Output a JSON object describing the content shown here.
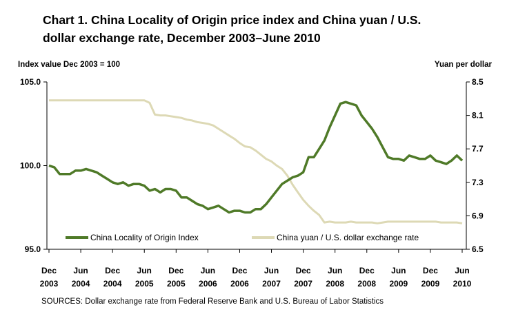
{
  "chart_data": {
    "type": "line",
    "title_line1": "Chart 1.  China Locality of Origin price index and China yuan / U.S.",
    "title_line2": "dollar exchange rate, December 2003–June 2010",
    "ylabel_left": "Index value Dec 2003 = 100",
    "ylabel_right": "Yuan per dollar",
    "source": "SOURCES: Dollar exchange rate from Federal Reserve Bank and U.S. Bureau of Labor Statistics",
    "ylim_left": [
      95.0,
      105.0
    ],
    "ylim_right": [
      6.5,
      8.5
    ],
    "yticks_left": [
      "105.0",
      "100.0",
      "95.0"
    ],
    "yticks_left_values": [
      105,
      100,
      95
    ],
    "yticks_right": [
      "8.5",
      "8.1",
      "7.7",
      "7.3",
      "6.9",
      "6.5"
    ],
    "yticks_right_values": [
      8.5,
      8.1,
      7.7,
      7.3,
      6.9,
      6.5
    ],
    "x_tick_labels": [
      [
        "Dec",
        "2003"
      ],
      [
        "Jun",
        "2004"
      ],
      [
        "Dec",
        "2004"
      ],
      [
        "Jun",
        "2005"
      ],
      [
        "Dec",
        "2005"
      ],
      [
        "Jun",
        "2006"
      ],
      [
        "Dec",
        "2006"
      ],
      [
        "Jun",
        "2007"
      ],
      [
        "Dec",
        "2007"
      ],
      [
        "Jun",
        "2008"
      ],
      [
        "Dec",
        "2008"
      ],
      [
        "Jun",
        "2009"
      ],
      [
        "Dec",
        "2009"
      ],
      [
        "Jun",
        "2010"
      ]
    ],
    "x_range_months": [
      0,
      78
    ],
    "series": [
      {
        "name": "China Locality of Origin Index",
        "axis": "left",
        "color": "#4f7a28",
        "values": [
          100.0,
          99.9,
          99.5,
          99.5,
          99.5,
          99.7,
          99.7,
          99.8,
          99.7,
          99.6,
          99.4,
          99.2,
          99.0,
          98.9,
          99.0,
          98.8,
          98.9,
          98.9,
          98.8,
          98.5,
          98.6,
          98.4,
          98.6,
          98.6,
          98.5,
          98.1,
          98.1,
          97.9,
          97.7,
          97.6,
          97.4,
          97.5,
          97.6,
          97.4,
          97.2,
          97.3,
          97.3,
          97.2,
          97.2,
          97.4,
          97.4,
          97.7,
          98.1,
          98.5,
          98.9,
          99.1,
          99.3,
          99.4,
          99.6,
          100.5,
          100.5,
          101.0,
          101.5,
          102.3,
          103.0,
          103.7,
          103.8,
          103.7,
          103.6,
          103.0,
          102.6,
          102.2,
          101.7,
          101.1,
          100.5,
          100.4,
          100.4,
          100.3,
          100.6,
          100.5,
          100.4,
          100.4,
          100.6,
          100.3,
          100.2,
          100.1,
          100.3,
          100.6,
          100.3
        ]
      },
      {
        "name": "China yuan / U.S. dollar exchange rate",
        "axis": "right",
        "color": "#ddd9b5",
        "values": [
          8.28,
          8.28,
          8.28,
          8.28,
          8.28,
          8.28,
          8.28,
          8.28,
          8.28,
          8.28,
          8.28,
          8.28,
          8.28,
          8.28,
          8.28,
          8.28,
          8.28,
          8.28,
          8.28,
          8.25,
          8.11,
          8.1,
          8.1,
          8.09,
          8.08,
          8.07,
          8.05,
          8.04,
          8.02,
          8.01,
          8.0,
          7.98,
          7.94,
          7.9,
          7.86,
          7.82,
          7.77,
          7.73,
          7.72,
          7.68,
          7.63,
          7.58,
          7.55,
          7.5,
          7.46,
          7.38,
          7.27,
          7.18,
          7.09,
          7.02,
          6.96,
          6.91,
          6.82,
          6.83,
          6.82,
          6.82,
          6.82,
          6.83,
          6.82,
          6.82,
          6.82,
          6.82,
          6.81,
          6.82,
          6.83,
          6.83,
          6.83,
          6.83,
          6.83,
          6.83,
          6.83,
          6.83,
          6.83,
          6.83,
          6.82,
          6.82,
          6.82,
          6.82,
          6.81
        ]
      }
    ]
  }
}
